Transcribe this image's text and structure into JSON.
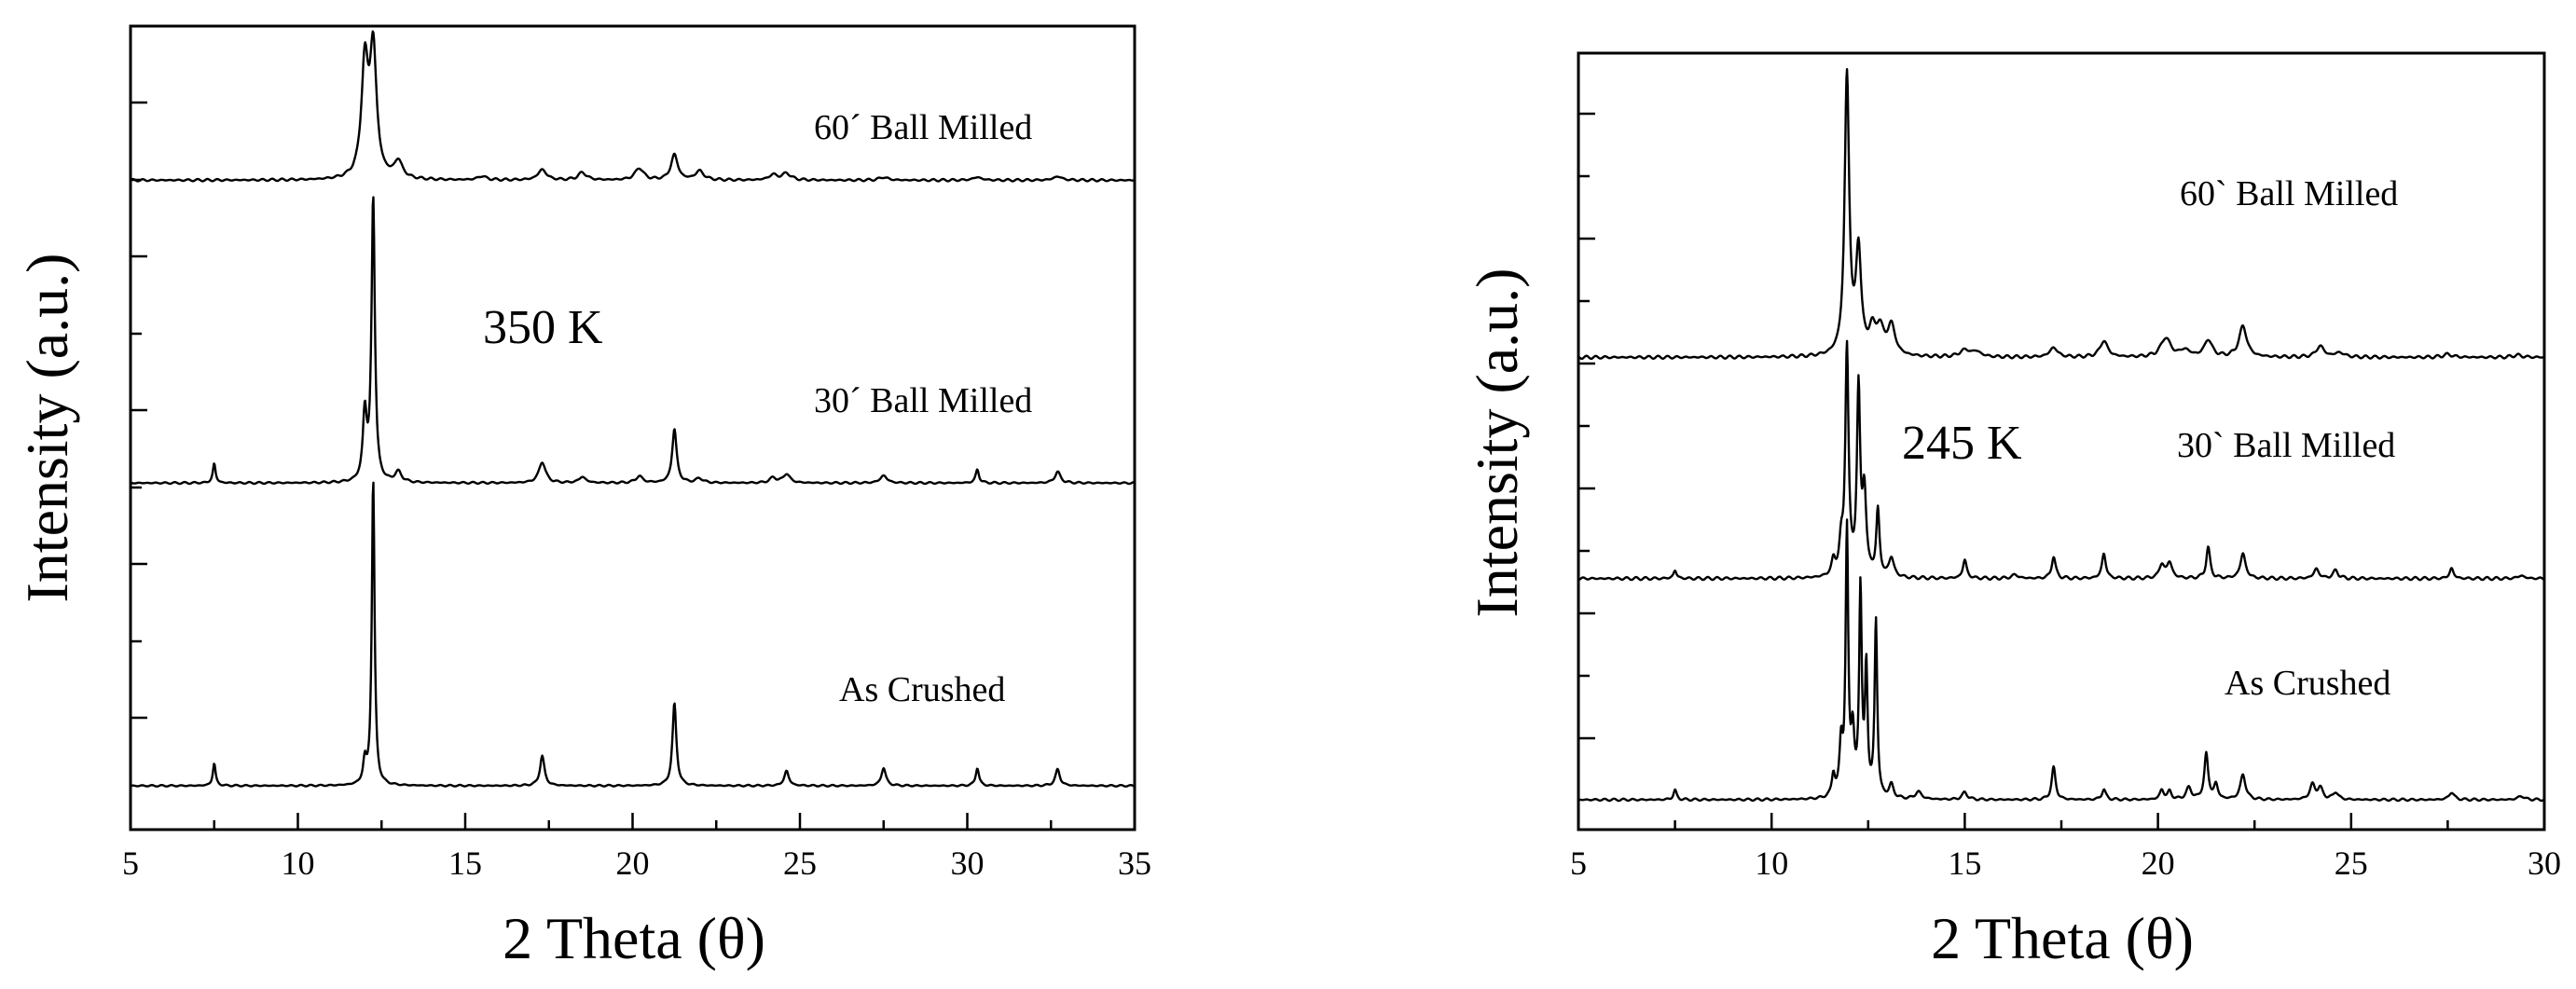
{
  "chart_data": [
    {
      "type": "line",
      "temperature_label": "350 K",
      "xlabel": "2 Theta (θ)",
      "ylabel": "Intensity (a.u.)",
      "xlim": [
        5,
        35
      ],
      "xticks": [
        5,
        10,
        15,
        20,
        25,
        30,
        35
      ],
      "ylim": [
        0,
        100
      ],
      "series": [
        {
          "name": "60´ Ball Milled",
          "baseline": 81,
          "noise": 0.15,
          "peaks": [
            [
              12.0,
              15,
              0.12
            ],
            [
              12.25,
              17,
              0.12
            ],
            [
              13.0,
              2.3,
              0.15
            ],
            [
              15.5,
              0.5,
              0.15
            ],
            [
              17.3,
              1.4,
              0.15
            ],
            [
              18.5,
              1.0,
              0.15
            ],
            [
              20.2,
              1.6,
              0.15
            ],
            [
              21.25,
              3.4,
              0.12
            ],
            [
              22.0,
              1.2,
              0.15
            ],
            [
              24.2,
              0.7,
              0.15
            ],
            [
              24.6,
              0.9,
              0.15
            ],
            [
              27.5,
              0.4,
              0.15
            ],
            [
              30.3,
              0.4,
              0.15
            ],
            [
              32.7,
              0.5,
              0.15
            ]
          ]
        },
        {
          "name": "30´ Ball Milled",
          "baseline": 40.5,
          "noise": 0.12,
          "peaks": [
            [
              7.5,
              2.6,
              0.05
            ],
            [
              12.0,
              9,
              0.07
            ],
            [
              12.25,
              38,
              0.06
            ],
            [
              13.0,
              1.4,
              0.12
            ],
            [
              17.3,
              2.8,
              0.12
            ],
            [
              18.5,
              0.8,
              0.12
            ],
            [
              20.2,
              0.9,
              0.12
            ],
            [
              21.25,
              7.2,
              0.08
            ],
            [
              22.0,
              0.6,
              0.12
            ],
            [
              24.2,
              0.7,
              0.12
            ],
            [
              24.6,
              1.2,
              0.12
            ],
            [
              27.5,
              1.0,
              0.12
            ],
            [
              30.3,
              1.8,
              0.06
            ],
            [
              32.7,
              1.5,
              0.1
            ]
          ]
        },
        {
          "name": "As Crushed",
          "baseline": 0,
          "noise": 0.1,
          "peaks": [
            [
              7.5,
              3,
              0.05
            ],
            [
              12.0,
              3,
              0.06
            ],
            [
              12.25,
              41,
              0.05
            ],
            [
              17.3,
              4,
              0.08
            ],
            [
              21.25,
              11,
              0.07
            ],
            [
              24.6,
              2,
              0.08
            ],
            [
              27.5,
              2.4,
              0.08
            ],
            [
              30.3,
              2.4,
              0.06
            ],
            [
              32.7,
              2.2,
              0.08
            ]
          ]
        }
      ]
    },
    {
      "type": "line",
      "temperature_label": "245 K",
      "xlabel": "2 Theta (θ)",
      "ylabel": "Intensity (a.u.)",
      "xlim": [
        5,
        30
      ],
      "xticks": [
        5,
        10,
        15,
        20,
        25,
        30
      ],
      "ylim": [
        0,
        100
      ],
      "series": [
        {
          "name": "60` Ball Milled",
          "baseline": 60,
          "noise": 0.2,
          "peaks": [
            [
              11.95,
              38,
              0.07
            ],
            [
              12.25,
              14,
              0.08
            ],
            [
              12.6,
              3,
              0.1
            ],
            [
              12.8,
              3.5,
              0.12
            ],
            [
              13.1,
              4,
              0.12
            ],
            [
              15.0,
              0.9,
              0.15
            ],
            [
              15.3,
              0.7,
              0.15
            ],
            [
              17.3,
              1.3,
              0.12
            ],
            [
              18.6,
              2.2,
              0.12
            ],
            [
              20.2,
              2.6,
              0.15
            ],
            [
              20.7,
              0.9,
              0.15
            ],
            [
              21.3,
              2.3,
              0.12
            ],
            [
              22.2,
              4.2,
              0.12
            ],
            [
              24.2,
              1.5,
              0.12
            ],
            [
              24.7,
              0.6,
              0.15
            ],
            [
              27.5,
              0.4,
              0.15
            ],
            [
              29.3,
              0.3,
              0.15
            ]
          ]
        },
        {
          "name": "30` Ball Milled",
          "baseline": 30,
          "noise": 0.2,
          "peaks": [
            [
              7.5,
              1.1,
              0.05
            ],
            [
              11.6,
              2,
              0.06
            ],
            [
              11.8,
              4,
              0.06
            ],
            [
              11.95,
              31,
              0.05
            ],
            [
              12.25,
              25,
              0.05
            ],
            [
              12.4,
              11,
              0.06
            ],
            [
              12.75,
              9,
              0.05
            ],
            [
              13.1,
              2.6,
              0.08
            ],
            [
              15.0,
              2.5,
              0.06
            ],
            [
              16.3,
              0.5,
              0.1
            ],
            [
              17.3,
              3,
              0.06
            ],
            [
              18.6,
              3.4,
              0.06
            ],
            [
              20.1,
              1.8,
              0.08
            ],
            [
              20.3,
              2.1,
              0.08
            ],
            [
              21.3,
              4.2,
              0.06
            ],
            [
              22.2,
              3.4,
              0.08
            ],
            [
              24.1,
              1.3,
              0.08
            ],
            [
              24.6,
              1.1,
              0.08
            ],
            [
              27.6,
              1.4,
              0.06
            ],
            [
              29.4,
              0.4,
              0.1
            ]
          ]
        },
        {
          "name": "As Crushed",
          "baseline": 0,
          "noise": 0.15,
          "peaks": [
            [
              7.5,
              1.3,
              0.05
            ],
            [
              11.6,
              3,
              0.05
            ],
            [
              11.8,
              7,
              0.05
            ],
            [
              11.95,
              36,
              0.04
            ],
            [
              12.1,
              8,
              0.05
            ],
            [
              12.3,
              28,
              0.04
            ],
            [
              12.45,
              17,
              0.04
            ],
            [
              12.7,
              24,
              0.04
            ],
            [
              13.1,
              1.8,
              0.07
            ],
            [
              13.8,
              1.0,
              0.1
            ],
            [
              15.0,
              1.0,
              0.08
            ],
            [
              17.3,
              4.4,
              0.06
            ],
            [
              18.6,
              1.4,
              0.06
            ],
            [
              20.1,
              1.3,
              0.06
            ],
            [
              20.3,
              1.1,
              0.06
            ],
            [
              20.8,
              1.6,
              0.08
            ],
            [
              21.25,
              6.2,
              0.06
            ],
            [
              21.5,
              2.0,
              0.06
            ],
            [
              22.2,
              3.4,
              0.08
            ],
            [
              24.0,
              2.0,
              0.08
            ],
            [
              24.2,
              1.5,
              0.08
            ],
            [
              24.6,
              1.0,
              0.08
            ],
            [
              27.6,
              1.0,
              0.08
            ],
            [
              29.4,
              0.5,
              0.1
            ]
          ]
        }
      ]
    }
  ]
}
